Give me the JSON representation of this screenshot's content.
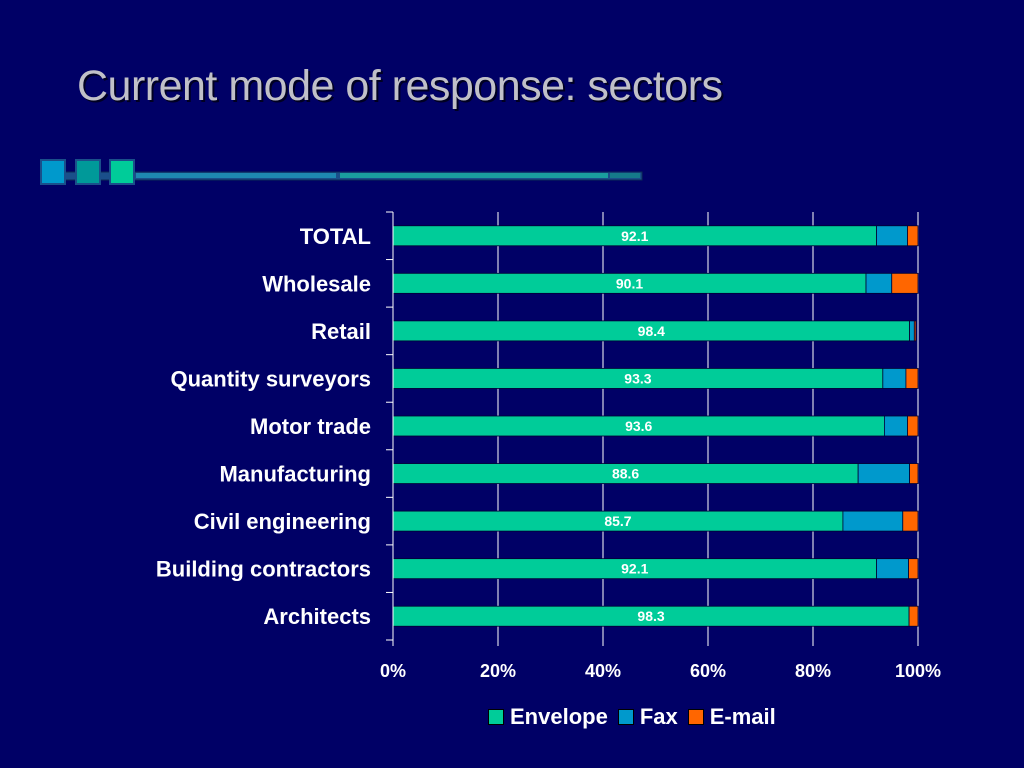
{
  "slide": {
    "title": "Current mode of response: sectors"
  },
  "colors": {
    "background": "#000066",
    "title": "#C0C0C8",
    "envelope": "#00CC99",
    "fax": "#0099CC",
    "email": "#FF6600",
    "gridline": "#FFFFFF"
  },
  "chart_data": {
    "type": "bar",
    "orientation": "horizontal",
    "stacked": "percent",
    "categories": [
      "TOTAL",
      "Wholesale",
      "Retail",
      "Quantity surveyors",
      "Motor trade",
      "Manufacturing",
      "Civil engineering",
      "Building contractors",
      "Architects"
    ],
    "series": [
      {
        "name": "Envelope",
        "color": "#00CC99",
        "values": [
          92.1,
          90.1,
          98.4,
          93.3,
          93.6,
          88.6,
          85.7,
          92.1,
          98.3
        ]
      },
      {
        "name": "Fax",
        "color": "#0099CC",
        "values": [
          5.9,
          4.9,
          0.9,
          4.4,
          4.4,
          9.8,
          11.4,
          6.1,
          0.0
        ]
      },
      {
        "name": "E-mail",
        "color": "#FF6600",
        "values": [
          2.0,
          5.0,
          0.3,
          2.3,
          2.0,
          1.6,
          2.9,
          1.8,
          1.7
        ]
      }
    ],
    "data_labels": [
      "92.1",
      "90.1",
      "98.4",
      "93.3",
      "93.6",
      "88.6",
      "85.7",
      "92.1",
      "98.3"
    ],
    "x_ticks": [
      "0%",
      "20%",
      "40%",
      "60%",
      "80%",
      "100%"
    ],
    "xlim": [
      0,
      100
    ],
    "grid": true,
    "legend_position": "bottom"
  },
  "legend": {
    "items": [
      {
        "label": "Envelope",
        "color": "#00CC99"
      },
      {
        "label": "Fax",
        "color": "#0099CC"
      },
      {
        "label": "E-mail",
        "color": "#FF6600"
      }
    ]
  }
}
